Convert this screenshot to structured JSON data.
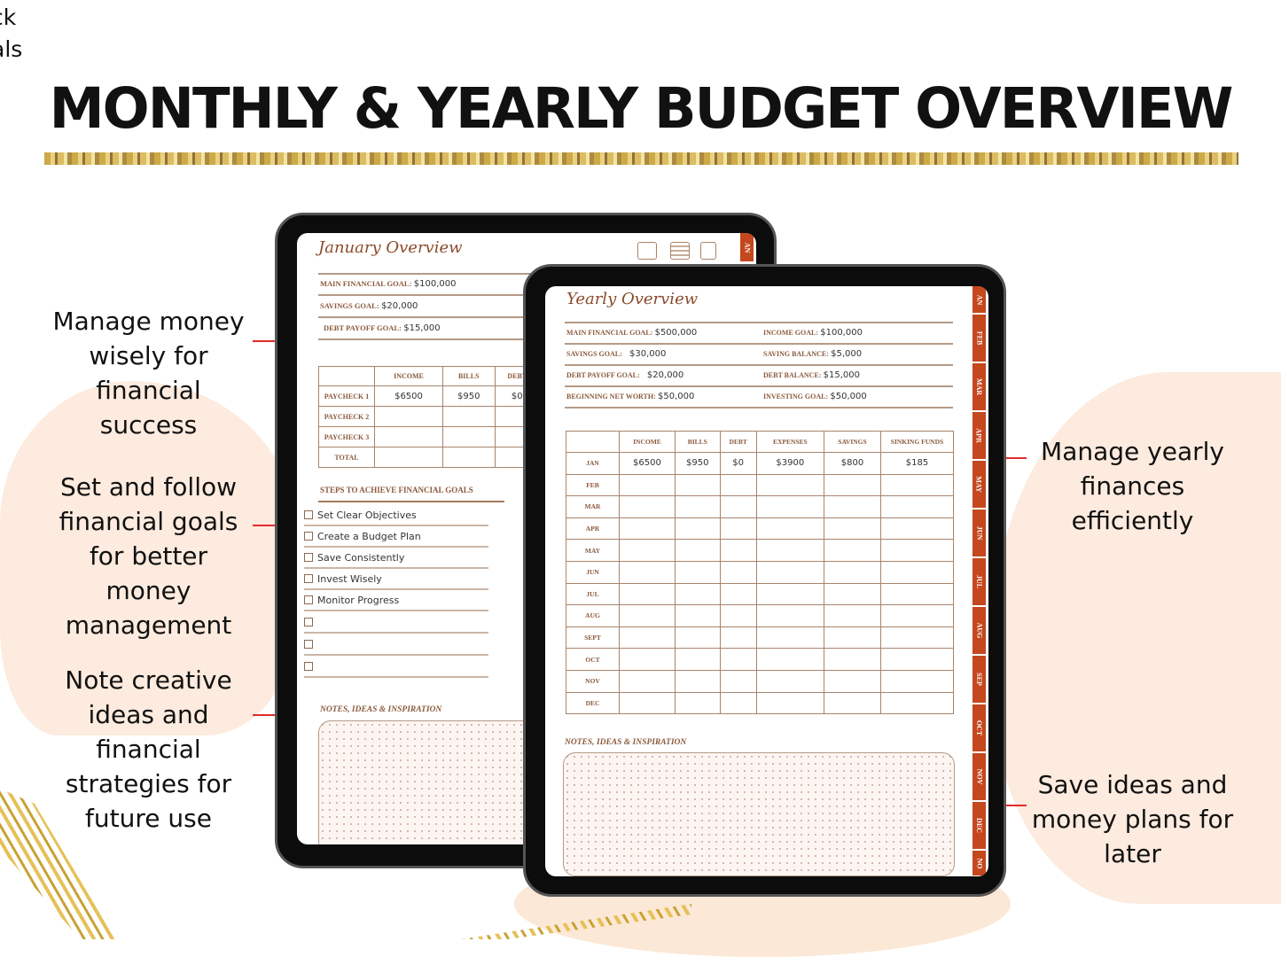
{
  "corner_fragment": [
    "ck",
    "als"
  ],
  "title": "MONTHLY & YEARLY BUDGET OVERVIEW",
  "callouts": {
    "left": [
      {
        "text": "Manage money wisely for financial success",
        "lines": [
          "Manage money",
          "wisely for",
          "financial",
          "success"
        ]
      },
      {
        "text": "Set and follow financial goals for better money management",
        "lines": [
          "Set and follow",
          "financial goals",
          "for better",
          "money",
          "management"
        ]
      },
      {
        "text": "Note creative ideas and financial strategies for future use",
        "lines": [
          "Note creative",
          "ideas and",
          "financial",
          "strategies for",
          "future use"
        ]
      }
    ],
    "right": [
      {
        "text": "Manage yearly finances efficiently",
        "lines": [
          "Manage yearly",
          "finances",
          "efficiently"
        ]
      },
      {
        "text": "Save ideas and money plans for later",
        "lines": [
          "Save ideas and",
          "money plans for",
          "later"
        ]
      }
    ]
  },
  "colors": {
    "accent": "#c4471d",
    "callout_line": "#e22a2a",
    "label_brown": "#8b5a3c",
    "blob": "#fbe6d6",
    "gold": "#d4af4a"
  },
  "monthly": {
    "title": "January Overview",
    "icons": [
      "calendar-365-icon",
      "calendar-grid-icon",
      "document-search-icon"
    ],
    "tab_partial": "AN",
    "goals": [
      {
        "label": "MAIN FINANCIAL GOAL:",
        "value": "$100,000"
      },
      {
        "label": "SAVINGS GOAL:",
        "value": "$20,000"
      },
      {
        "label": "DEBT PAYOFF GOAL:",
        "value": "$15,000"
      }
    ],
    "table": {
      "headers": [
        "",
        "INCOME",
        "BILLS",
        "DEBT"
      ],
      "rows": [
        {
          "label": "PAYCHECK 1",
          "values": [
            "$6500",
            "$950",
            "$0"
          ]
        },
        {
          "label": "PAYCHECK 2",
          "values": [
            "",
            "",
            ""
          ]
        },
        {
          "label": "PAYCHECK 3",
          "values": [
            "",
            "",
            ""
          ]
        },
        {
          "label": "TOTAL",
          "values": [
            "",
            "",
            ""
          ]
        }
      ]
    },
    "steps_title": "STEPS TO ACHIEVE FINANCIAL GOALS",
    "steps": [
      "Set Clear Objectives",
      "Create a Budget Plan",
      "Save Consistently",
      "Invest Wisely",
      "Monitor Progress",
      "",
      "",
      ""
    ],
    "notes_title": "NOTES, IDEAS & INSPIRATION"
  },
  "yearly": {
    "title": "Yearly Overview",
    "goals_left": [
      {
        "label": "MAIN FINANCIAL GOAL:",
        "value": "$500,000"
      },
      {
        "label": "SAVINGS GOAL:",
        "value": "$30,000"
      },
      {
        "label": "DEBT PAYOFF GOAL:",
        "value": "$20,000"
      },
      {
        "label": "BEGINNING NET WORTH:",
        "value": "$50,000"
      }
    ],
    "goals_right": [
      {
        "label": "INCOME GOAL:",
        "value": "$100,000"
      },
      {
        "label": "SAVING BALANCE:",
        "value": "$5,000"
      },
      {
        "label": "DEBT BALANCE:",
        "value": "$15,000"
      },
      {
        "label": "INVESTING GOAL:",
        "value": "$50,000"
      }
    ],
    "table": {
      "headers": [
        "",
        "INCOME",
        "BILLS",
        "DEBT",
        "EXPENSES",
        "SAVINGS",
        "SINKING FUNDS"
      ],
      "rows": [
        {
          "label": "JAN",
          "values": [
            "$6500",
            "$950",
            "$0",
            "$3900",
            "$800",
            "$185"
          ]
        },
        {
          "label": "FEB",
          "values": [
            "",
            "",
            "",
            "",
            "",
            ""
          ]
        },
        {
          "label": "MAR",
          "values": [
            "",
            "",
            "",
            "",
            "",
            ""
          ]
        },
        {
          "label": "APR",
          "values": [
            "",
            "",
            "",
            "",
            "",
            ""
          ]
        },
        {
          "label": "MAY",
          "values": [
            "",
            "",
            "",
            "",
            "",
            ""
          ]
        },
        {
          "label": "JUN",
          "values": [
            "",
            "",
            "",
            "",
            "",
            ""
          ]
        },
        {
          "label": "JUL",
          "values": [
            "",
            "",
            "",
            "",
            "",
            ""
          ]
        },
        {
          "label": "AUG",
          "values": [
            "",
            "",
            "",
            "",
            "",
            ""
          ]
        },
        {
          "label": "SEPT",
          "values": [
            "",
            "",
            "",
            "",
            "",
            ""
          ]
        },
        {
          "label": "OCT",
          "values": [
            "",
            "",
            "",
            "",
            "",
            ""
          ]
        },
        {
          "label": "NOV",
          "values": [
            "",
            "",
            "",
            "",
            "",
            ""
          ]
        },
        {
          "label": "DEC",
          "values": [
            "",
            "",
            "",
            "",
            "",
            ""
          ]
        }
      ]
    },
    "notes_title": "NOTES, IDEAS & INSPIRATION",
    "month_tabs": [
      "AN",
      "FEB",
      "MAR",
      "APR",
      "MAY",
      "JUN",
      "JUL",
      "AUG",
      "SEP",
      "OCT",
      "NOV",
      "DEC",
      "NO"
    ]
  }
}
